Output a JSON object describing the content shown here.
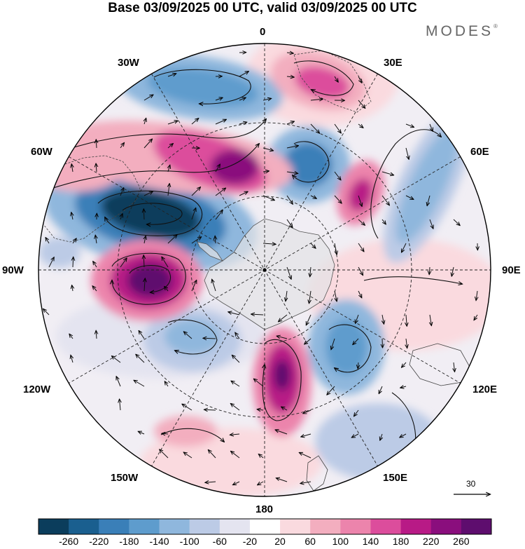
{
  "title": "Base 03/09/2025 00 UTC, valid 03/09/2025 00 UTC",
  "logo": "MODES",
  "logo_mark": "®",
  "projection": "south polar stereographic",
  "longitude_labels": {
    "lon_0": "0",
    "lon_30e": "30E",
    "lon_60e": "60E",
    "lon_90e": "90E",
    "lon_120e": "120E",
    "lon_150e": "150E",
    "lon_180": "180",
    "lon_150w": "150W",
    "lon_120w": "120W",
    "lon_90w": "90W",
    "lon_60w": "60W",
    "lon_30w": "30W"
  },
  "reference_vector": {
    "label": "30"
  },
  "colorbar": {
    "colors": [
      "#0b3d5c",
      "#1a5f8f",
      "#3a7fb8",
      "#5e9ccd",
      "#8fb7dd",
      "#bccbe6",
      "#e4e4f0",
      "#ffffff",
      "#fadadf",
      "#f3aebf",
      "#ec84ac",
      "#dc4d9c",
      "#b81a86",
      "#8a0e7d",
      "#5e0d6e"
    ],
    "tick_labels": [
      "-260",
      "-220",
      "-180",
      "-140",
      "-100",
      "-60",
      "-20",
      "20",
      "60",
      "100",
      "140",
      "180",
      "220",
      "260"
    ]
  },
  "anomaly_features": [
    {
      "sign": "negative",
      "strength": 5
    },
    {
      "sign": "negative",
      "strength": 3
    },
    {
      "sign": "negative",
      "strength": 3
    },
    {
      "sign": "negative",
      "strength": 2
    },
    {
      "sign": "negative",
      "strength": 3
    },
    {
      "sign": "negative",
      "strength": 2
    },
    {
      "sign": "positive",
      "strength": 5
    },
    {
      "sign": "positive",
      "strength": 5
    },
    {
      "sign": "positive",
      "strength": 4
    },
    {
      "sign": "positive",
      "strength": 3
    },
    {
      "sign": "positive",
      "strength": 3
    },
    {
      "sign": "positive",
      "strength": 1
    }
  ]
}
